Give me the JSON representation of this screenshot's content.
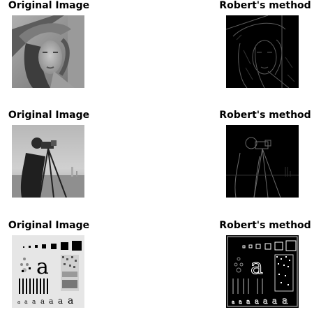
{
  "figure": {
    "rows": [
      {
        "left_title": "Original Image",
        "right_title": "Robert's method",
        "left_image": "lena-grayscale-portrait",
        "right_image": "lena-roberts-edges"
      },
      {
        "left_title": "Original Image",
        "right_title": "Robert's method",
        "left_image": "cameraman-grayscale",
        "right_image": "cameraman-roberts-edges"
      },
      {
        "left_title": "Original Image",
        "right_title": "Robert's method",
        "left_image": "test-pattern-grayscale",
        "right_image": "test-pattern-roberts-edges"
      }
    ]
  }
}
